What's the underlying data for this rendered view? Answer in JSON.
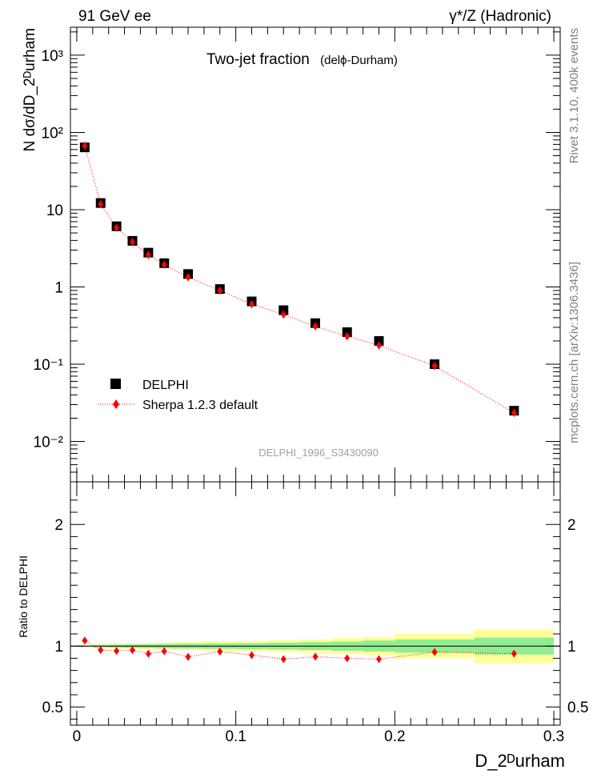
{
  "header": {
    "left": "91 GeV ee",
    "right": "γ*/Z (Hadronic)"
  },
  "side": {
    "rivet": "Rivet 3.1.10,  400k events",
    "mcplots": "mcplots.cern.ch [arXiv:1306.3436]"
  },
  "colors": {
    "data_marker": "#000000",
    "mc": "#ff0000",
    "band_stat": "#90ee90",
    "band_total": "#ffff99",
    "watermark": "#a0a0a0"
  },
  "chart_data": [
    {
      "type": "scatter",
      "title": "Two-jet fraction",
      "title_sub": "(delϕ-Durham)",
      "analysis": "DELPHI_1996_S3430090",
      "xlabel": "D_2ᴰurham",
      "ylabel": "N dσ/dD_2ᴰurham",
      "yscale": "log",
      "xlim": [
        -0.004,
        0.304
      ],
      "ylim": [
        0.003,
        2300
      ],
      "x_ticks": [
        0,
        0.1,
        0.2,
        0.3
      ],
      "x_tick_labels": [
        "0",
        "0.1",
        "0.2",
        "0.3"
      ],
      "y_tick_labels": [
        "10⁻²",
        "10⁻¹",
        "1",
        "10",
        "10²",
        "10³"
      ],
      "legend_position": "bottom-left",
      "series": [
        {
          "name": "DELPHI",
          "marker": "square",
          "x": [
            0.005,
            0.015,
            0.025,
            0.035,
            0.045,
            0.055,
            0.07,
            0.09,
            0.11,
            0.13,
            0.15,
            0.17,
            0.19,
            0.225,
            0.275
          ],
          "y": [
            64,
            12.2,
            6.1,
            3.95,
            2.78,
            2.03,
            1.47,
            0.94,
            0.65,
            0.5,
            0.34,
            0.26,
            0.2,
            0.1,
            0.025
          ]
        },
        {
          "name": "Sherpa 1.2.3 default",
          "marker": "diamond",
          "x": [
            0.005,
            0.015,
            0.025,
            0.035,
            0.045,
            0.055,
            0.07,
            0.09,
            0.11,
            0.13,
            0.15,
            0.17,
            0.19,
            0.225,
            0.275
          ],
          "y": [
            67,
            11.8,
            5.85,
            3.82,
            2.6,
            1.95,
            1.34,
            0.9,
            0.6,
            0.44,
            0.31,
            0.23,
            0.175,
            0.095,
            0.0235
          ]
        }
      ]
    },
    {
      "type": "scatter",
      "ylabel": "Ratio to DELPHI",
      "xlim": [
        -0.004,
        0.304
      ],
      "ylim": [
        0.35,
        2.35
      ],
      "y_ticks": [
        0.5,
        1,
        2
      ],
      "y_tick_labels": [
        "0.5",
        "1",
        "2"
      ],
      "bands": [
        {
          "x0": 0.0,
          "x1": 0.01,
          "stat": [
            0.995,
            1.005
          ],
          "total": [
            0.99,
            1.01
          ]
        },
        {
          "x0": 0.01,
          "x1": 0.02,
          "stat": [
            0.99,
            1.01
          ],
          "total": [
            0.985,
            1.015
          ]
        },
        {
          "x0": 0.02,
          "x1": 0.03,
          "stat": [
            0.988,
            1.012
          ],
          "total": [
            0.98,
            1.02
          ]
        },
        {
          "x0": 0.03,
          "x1": 0.04,
          "stat": [
            0.986,
            1.014
          ],
          "total": [
            0.978,
            1.022
          ]
        },
        {
          "x0": 0.04,
          "x1": 0.05,
          "stat": [
            0.984,
            1.016
          ],
          "total": [
            0.975,
            1.025
          ]
        },
        {
          "x0": 0.05,
          "x1": 0.06,
          "stat": [
            0.982,
            1.018
          ],
          "total": [
            0.972,
            1.028
          ]
        },
        {
          "x0": 0.06,
          "x1": 0.08,
          "stat": [
            0.98,
            1.02
          ],
          "total": [
            0.968,
            1.032
          ]
        },
        {
          "x0": 0.08,
          "x1": 0.1,
          "stat": [
            0.978,
            1.022
          ],
          "total": [
            0.962,
            1.038
          ]
        },
        {
          "x0": 0.1,
          "x1": 0.12,
          "stat": [
            0.976,
            1.024
          ],
          "total": [
            0.958,
            1.042
          ]
        },
        {
          "x0": 0.12,
          "x1": 0.14,
          "stat": [
            0.972,
            1.028
          ],
          "total": [
            0.952,
            1.048
          ]
        },
        {
          "x0": 0.14,
          "x1": 0.16,
          "stat": [
            0.968,
            1.032
          ],
          "total": [
            0.945,
            1.055
          ]
        },
        {
          "x0": 0.16,
          "x1": 0.18,
          "stat": [
            0.962,
            1.038
          ],
          "total": [
            0.935,
            1.065
          ]
        },
        {
          "x0": 0.18,
          "x1": 0.2,
          "stat": [
            0.955,
            1.045
          ],
          "total": [
            0.925,
            1.075
          ]
        },
        {
          "x0": 0.2,
          "x1": 0.25,
          "stat": [
            0.945,
            1.055
          ],
          "total": [
            0.9,
            1.1
          ]
        },
        {
          "x0": 0.25,
          "x1": 0.3,
          "stat": [
            0.93,
            1.07
          ],
          "total": [
            0.86,
            1.14
          ]
        }
      ],
      "series": [
        {
          "name": "Sherpa 1.2.3 default",
          "x": [
            0.005,
            0.015,
            0.025,
            0.035,
            0.045,
            0.055,
            0.07,
            0.09,
            0.11,
            0.13,
            0.15,
            0.17,
            0.19,
            0.225,
            0.275
          ],
          "y": [
            1.046,
            0.968,
            0.96,
            0.967,
            0.937,
            0.958,
            0.912,
            0.955,
            0.926,
            0.893,
            0.913,
            0.9,
            0.893,
            0.951,
            0.938
          ],
          "yerr": [
            0.012,
            0.01,
            0.01,
            0.01,
            0.01,
            0.01,
            0.01,
            0.01,
            0.01,
            0.01,
            0.01,
            0.01,
            0.012,
            0.012,
            0.03
          ]
        }
      ]
    }
  ]
}
